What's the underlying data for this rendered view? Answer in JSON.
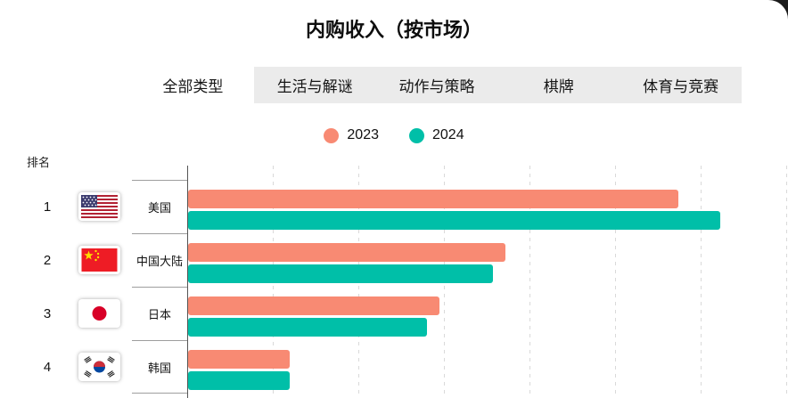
{
  "title": "内购收入（按市场）",
  "tabs": [
    {
      "label": "全部类型",
      "active": true
    },
    {
      "label": "生活与解谜",
      "active": false
    },
    {
      "label": "动作与策略",
      "active": false
    },
    {
      "label": "棋牌",
      "active": false
    },
    {
      "label": "体育与竞赛",
      "active": false
    }
  ],
  "legend": {
    "labels": [
      "2023",
      "2024"
    ],
    "position": "top-center"
  },
  "colors": {
    "c2023": "#F88A73",
    "c2024": "#00BFA8"
  },
  "rank_header": "排名",
  "chart_data": {
    "type": "bar",
    "orientation": "horizontal",
    "title": "内购收入（按市场）",
    "ylabel": "排名",
    "xlabel": "",
    "grid": "vertical-dashed",
    "axis_value_labels_visible": false,
    "value_scale": "percent-of-axis-width",
    "categories": [
      "美国",
      "中国大陆",
      "日本",
      "韩国"
    ],
    "ranks": [
      1,
      2,
      3,
      4
    ],
    "flags": [
      "us-flag",
      "china-flag",
      "japan-flag",
      "south-korea-flag"
    ],
    "series": [
      {
        "name": "2023",
        "color": "#F88A73",
        "values": [
          82,
          53,
          42,
          17
        ]
      },
      {
        "name": "2024",
        "color": "#00BFA8",
        "values": [
          89,
          51,
          40,
          17
        ]
      }
    ]
  }
}
